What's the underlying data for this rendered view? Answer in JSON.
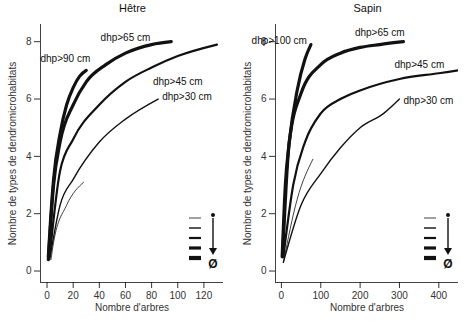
{
  "chart_data": [
    {
      "type": "line",
      "title": "Hêtre",
      "xlabel": "Nombre d'arbres",
      "ylabel": "Nombre de types de dendromicrohabitats",
      "xlim": [
        -5,
        135
      ],
      "xticks": [
        0,
        20,
        40,
        60,
        80,
        100,
        120
      ],
      "ylim": [
        -0.4,
        8.6
      ],
      "yticks": [
        0,
        2,
        4,
        6,
        8
      ],
      "color": "#111111",
      "annotations": [
        {
          "text": "Ø"
        }
      ],
      "series": [
        {
          "name": "dhp>90 cm",
          "x": [
            1,
            3,
            5,
            10,
            15,
            20,
            25,
            30
          ],
          "values": [
            0.5,
            2,
            3.2,
            4.8,
            5.8,
            6.4,
            6.8,
            7.0
          ]
        },
        {
          "name": "dhp>65 cm",
          "x": [
            1,
            5,
            10,
            20,
            30,
            45,
            60,
            80,
            95
          ],
          "values": [
            0.4,
            3,
            4.5,
            5.8,
            6.6,
            7.2,
            7.6,
            7.9,
            8.0
          ]
        },
        {
          "name": "dhp>45 cm",
          "x": [
            2,
            10,
            20,
            40,
            60,
            80,
            100,
            130
          ],
          "values": [
            0.5,
            3.5,
            4.6,
            5.8,
            6.6,
            7.1,
            7.5,
            7.9
          ]
        },
        {
          "name": "dhp>30 cm",
          "x": [
            2,
            10,
            20,
            40,
            60,
            85
          ],
          "values": [
            0.4,
            2.3,
            3.2,
            4.5,
            5.3,
            6.0
          ]
        },
        {
          "x": [
            3,
            5,
            15,
            28
          ],
          "values": [
            0.4,
            1.0,
            2.3,
            3.1
          ]
        }
      ]
    },
    {
      "type": "line",
      "title": "Sapin",
      "xlabel": "Nombre d'arbres",
      "ylabel": "Nombre de types de dendromicrohabitats",
      "xlim": [
        -15,
        450
      ],
      "xticks": [
        0,
        100,
        200,
        300,
        400
      ],
      "ylim": [
        -0.4,
        8.6
      ],
      "yticks": [
        0,
        2,
        4,
        6,
        8
      ],
      "color": "#111111",
      "annotations": [
        {
          "text": "Ø"
        }
      ],
      "series": [
        {
          "name": "dhp>100 cm",
          "x": [
            2,
            10,
            20,
            40,
            60,
            75
          ],
          "values": [
            0.5,
            3,
            4.5,
            6.3,
            7.4,
            7.9
          ]
        },
        {
          "name": "dhp>65 cm",
          "x": [
            3,
            20,
            50,
            100,
            150,
            200,
            250,
            310
          ],
          "values": [
            0.5,
            4.5,
            6.2,
            7.2,
            7.6,
            7.8,
            7.9,
            8.0
          ]
        },
        {
          "name": "dhp>45 cm",
          "x": [
            5,
            30,
            60,
            100,
            150,
            200,
            300,
            400,
            450
          ],
          "values": [
            0.5,
            3,
            4.5,
            5.5,
            6.0,
            6.3,
            6.7,
            6.9,
            7.0
          ]
        },
        {
          "name": "dhp>30 cm",
          "x": [
            5,
            50,
            100,
            150,
            200,
            260,
            300
          ],
          "values": [
            0.3,
            2.3,
            3.4,
            4.3,
            5.0,
            5.5,
            6.0
          ]
        },
        {
          "x": [
            5,
            40,
            80
          ],
          "values": [
            0.3,
            2.5,
            3.9
          ]
        }
      ]
    }
  ]
}
